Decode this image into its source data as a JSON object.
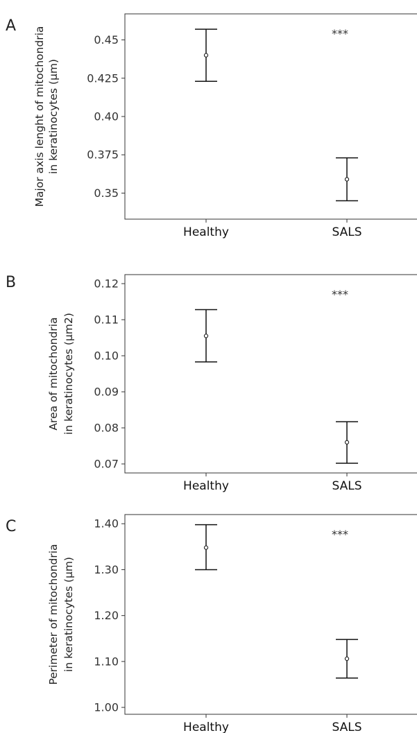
{
  "chart_data": [
    {
      "panel": "A",
      "type": "errorbar",
      "categories": [
        "Healthy",
        "SALS"
      ],
      "mean": [
        0.44,
        0.359
      ],
      "lower": [
        0.423,
        0.345
      ],
      "upper": [
        0.457,
        0.373
      ],
      "ylabel_lines": [
        "Major axis lenght of mitochondria",
        "in keratinocytes (µm)"
      ],
      "ylim": [
        0.333,
        0.467
      ],
      "yticks": [
        0.35,
        0.375,
        0.4,
        0.425,
        0.45
      ],
      "ytick_labels": [
        "0.35",
        "0.375",
        "0.40",
        "0.425",
        "0.45"
      ],
      "annotation": "***",
      "grid": false
    },
    {
      "panel": "B",
      "type": "errorbar",
      "categories": [
        "Healthy",
        "SALS"
      ],
      "mean": [
        0.1055,
        0.076
      ],
      "lower": [
        0.0983,
        0.0702
      ],
      "upper": [
        0.1128,
        0.0817
      ],
      "ylabel_lines": [
        "Area of mitochondria",
        "in keratinocytes (µm2)"
      ],
      "ylim": [
        0.0675,
        0.1225
      ],
      "yticks": [
        0.07,
        0.08,
        0.09,
        0.1,
        0.11,
        0.12
      ],
      "ytick_labels": [
        "0.07",
        "0.08",
        "0.09",
        "0.10",
        "0.11",
        "0.12"
      ],
      "annotation": "***",
      "grid": false
    },
    {
      "panel": "C",
      "type": "errorbar",
      "categories": [
        "Healthy",
        "SALS"
      ],
      "mean": [
        1.348,
        1.106
      ],
      "lower": [
        1.3,
        1.064
      ],
      "upper": [
        1.398,
        1.148
      ],
      "ylabel_lines": [
        "Perimeter of mitochondria",
        "in keratinocytes (µm)"
      ],
      "ylim": [
        0.985,
        1.42
      ],
      "yticks": [
        1.0,
        1.1,
        1.2,
        1.3,
        1.4
      ],
      "ytick_labels": [
        "1.00",
        "1.10",
        "1.20",
        "1.30",
        "1.40"
      ],
      "annotation": "***",
      "grid": false
    }
  ]
}
